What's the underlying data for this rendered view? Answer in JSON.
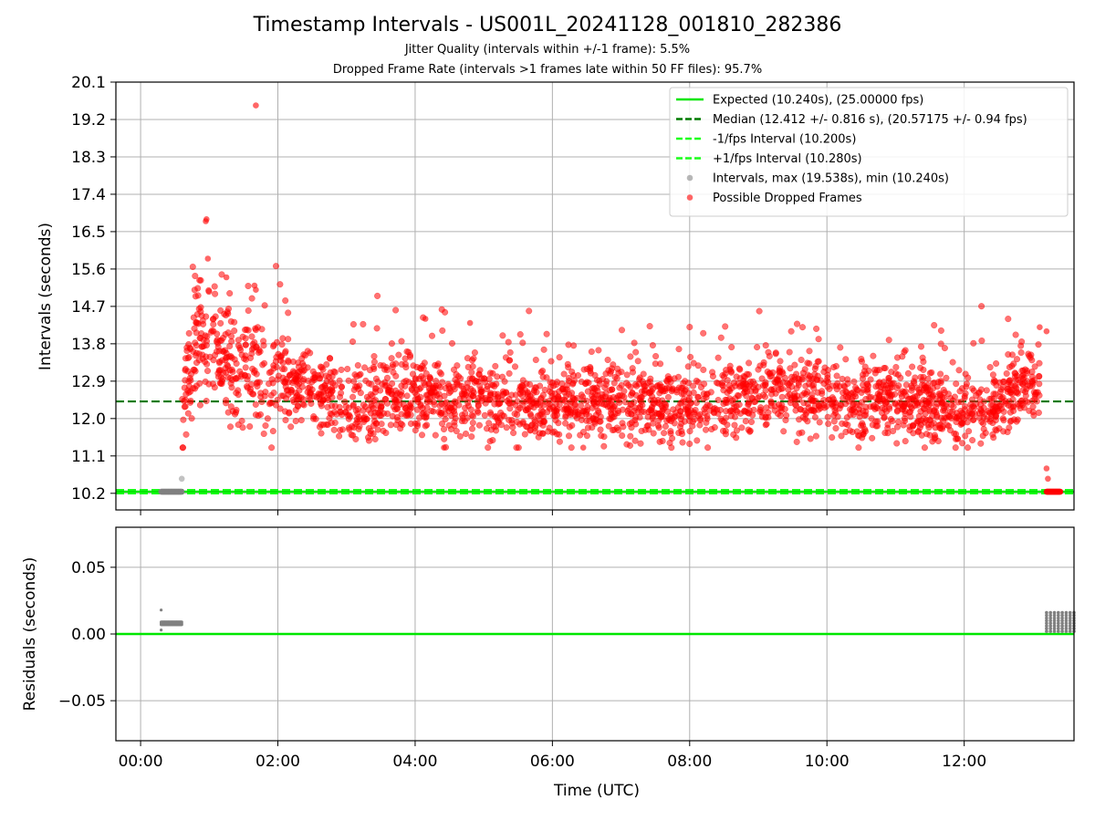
{
  "title": "Timestamp Intervals - US001L_20241128_001810_282386",
  "subtitle_jitter": "Jitter Quality (intervals within +/-1 frame): 5.5%",
  "subtitle_dropped": "Dropped Frame Rate (intervals >1 frames late within 50 FF files): 95.7%",
  "chart_data": [
    {
      "type": "scatter",
      "panel": "intervals",
      "ylabel": "Intervals (seconds)",
      "ylim": [
        9.8,
        20.1
      ],
      "yticks": [
        10.2,
        11.1,
        12.0,
        12.9,
        13.8,
        14.7,
        15.6,
        16.5,
        17.4,
        18.3,
        19.2,
        20.1
      ],
      "ytick_labels": [
        "10.2",
        "11.1",
        "12.0",
        "12.9",
        "13.8",
        "14.7",
        "15.6",
        "16.5",
        "17.4",
        "18.3",
        "19.2",
        "20.1"
      ],
      "xlim_hours": [
        -0.36,
        13.6
      ],
      "grid": true,
      "legend_position": "top-right",
      "legend": [
        {
          "label": "Expected (10.240s), (25.00000 fps)",
          "style": "solid-line",
          "color": "#00e600"
        },
        {
          "label": "Median (12.412 +/- 0.816 s), (20.57175 +/- 0.94 fps)",
          "style": "dashed-line",
          "color": "#007a00"
        },
        {
          "label": "-1/fps Interval (10.200s)",
          "style": "dashed-line",
          "color": "#1aff1a"
        },
        {
          "label": "+1/fps Interval (10.280s)",
          "style": "dashed-line",
          "color": "#1aff1a"
        },
        {
          "label": "Intervals, max (19.538s), min (10.240s)",
          "style": "marker",
          "color": "#888888"
        },
        {
          "label": "Possible Dropped Frames",
          "style": "marker",
          "color": "#ff0000"
        }
      ],
      "reference_lines": {
        "expected": 10.24,
        "median": 12.412,
        "minus_one_frame": 10.2,
        "plus_one_frame": 10.28
      },
      "dropped_frames_profile": {
        "x_hours": [
          0.6,
          0.65,
          0.75,
          0.85,
          1.0,
          1.2,
          1.4,
          1.6,
          1.8,
          2.0,
          2.3,
          2.6,
          3.0,
          3.3,
          3.6,
          4.0,
          4.5,
          5.0,
          5.5,
          6.0,
          7.0,
          8.0,
          9.0,
          9.3,
          10.0,
          11.0,
          12.0,
          12.3,
          12.6,
          12.9,
          13.1
        ],
        "y_seconds": [
          11.7,
          12.6,
          13.5,
          14.0,
          13.8,
          13.5,
          13.2,
          13.2,
          13.0,
          12.8,
          12.8,
          12.7,
          12.3,
          12.3,
          12.6,
          12.6,
          12.4,
          12.5,
          12.3,
          12.4,
          12.4,
          12.3,
          12.6,
          12.7,
          12.5,
          12.4,
          12.2,
          12.2,
          12.5,
          12.9,
          12.6
        ],
        "spread": 0.45
      },
      "outliers": [
        {
          "x": 1.68,
          "y": 19.538,
          "kind": "dropped"
        },
        {
          "x": 0.96,
          "y": 16.8,
          "kind": "dropped"
        },
        {
          "x": 0.95,
          "y": 16.75,
          "kind": "dropped"
        },
        {
          "x": 0.98,
          "y": 15.85,
          "kind": "dropped"
        },
        {
          "x": 1.25,
          "y": 15.4,
          "kind": "dropped"
        },
        {
          "x": 1.66,
          "y": 15.2,
          "kind": "dropped"
        },
        {
          "x": 1.68,
          "y": 15.1,
          "kind": "dropped"
        },
        {
          "x": 4.15,
          "y": 14.4,
          "kind": "dropped"
        },
        {
          "x": 4.8,
          "y": 14.3,
          "kind": "dropped"
        },
        {
          "x": 13.1,
          "y": 14.2,
          "kind": "dropped"
        },
        {
          "x": 13.2,
          "y": 14.1,
          "kind": "dropped"
        },
        {
          "x": 4.42,
          "y": 11.3,
          "kind": "dropped"
        },
        {
          "x": 6.45,
          "y": 11.3,
          "kind": "dropped"
        },
        {
          "x": 13.2,
          "y": 10.8,
          "kind": "dropped"
        },
        {
          "x": 13.22,
          "y": 10.55,
          "kind": "dropped"
        },
        {
          "x": 0.6,
          "y": 10.55,
          "kind": "interval"
        }
      ],
      "on_time_clusters": [
        {
          "x_start": 0.3,
          "x_end": 0.6,
          "y": 10.24,
          "kind": "interval"
        },
        {
          "x_start": 13.2,
          "x_end": 13.4,
          "y": 10.24,
          "kind": "dropped"
        }
      ]
    },
    {
      "type": "scatter",
      "panel": "residuals",
      "xlabel": "Time (UTC)",
      "ylabel": "Residuals (seconds)",
      "ylim": [
        -0.08,
        0.08
      ],
      "yticks": [
        0.05,
        0.0,
        -0.05
      ],
      "ytick_labels": [
        "0.05",
        "0.00",
        "−0.05"
      ],
      "xlim_hours": [
        -0.36,
        13.6
      ],
      "xticks_hours": [
        0,
        2,
        4,
        6,
        8,
        10,
        12
      ],
      "xtick_labels": [
        "00:00",
        "02:00",
        "04:00",
        "06:00",
        "08:00",
        "10:00",
        "12:00"
      ],
      "grid": true,
      "zero_line_color": "#00e600",
      "clusters": [
        {
          "x_start": 0.3,
          "x_end": 0.6,
          "values": [
            0.007,
            0.008,
            0.009
          ],
          "spike": 0.018
        },
        {
          "x_start": 13.2,
          "x_end": 13.6,
          "values": [
            0.002,
            0.004,
            0.006,
            0.008,
            0.01,
            0.012,
            0.014,
            0.016
          ]
        }
      ]
    }
  ]
}
